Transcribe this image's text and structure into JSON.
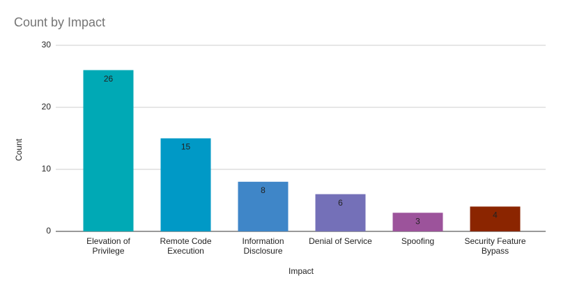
{
  "chart_data": {
    "type": "bar",
    "title": "Count by Impact",
    "x_label": "Impact",
    "y_label": "Count",
    "categories": [
      "Elevation of Privilege",
      "Remote Code Execution",
      "Information Disclosure",
      "Denial of Service",
      "Spoofing",
      "Security Feature Bypass"
    ],
    "values": [
      26,
      15,
      8,
      6,
      3,
      4
    ],
    "colors": [
      "#00a9b5",
      "#0099c6",
      "#3f86c8",
      "#7470b8",
      "#9c539b",
      "#8b2500"
    ],
    "ylim": [
      0,
      30
    ],
    "yticks": [
      0,
      10,
      20,
      30
    ],
    "grid": true
  }
}
